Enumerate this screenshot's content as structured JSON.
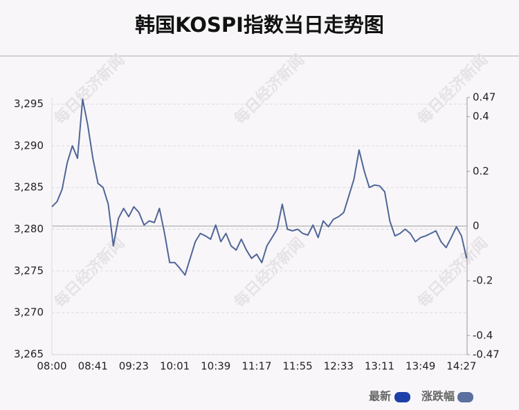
{
  "chart_data": {
    "type": "line",
    "title": "韩国KOSPI指数当日走势图",
    "watermark": "每日经济新闻",
    "categories": [
      "08:00",
      null,
      null,
      null,
      null,
      null,
      null,
      null,
      "08:41",
      null,
      null,
      null,
      null,
      null,
      null,
      null,
      "09:23",
      null,
      null,
      null,
      null,
      null,
      null,
      null,
      "10:01",
      null,
      null,
      null,
      null,
      null,
      null,
      null,
      "10:39",
      null,
      null,
      null,
      null,
      null,
      null,
      null,
      "11:17",
      null,
      null,
      null,
      null,
      null,
      null,
      null,
      "11:55",
      null,
      null,
      null,
      null,
      null,
      null,
      null,
      "12:33",
      null,
      null,
      null,
      null,
      null,
      null,
      null,
      "13:11",
      null,
      null,
      null,
      null,
      null,
      null,
      null,
      "13:49",
      null,
      null,
      null,
      null,
      null,
      null,
      null,
      "14:27",
      null
    ],
    "series": [
      {
        "color": "#4f6597",
        "values": [
          3282.7,
          3283.3,
          3284.8,
          3288,
          3290,
          3288.5,
          3295.6,
          3292.5,
          3288.5,
          3285.5,
          3285,
          3283,
          3278,
          3281.3,
          3282.5,
          3281.5,
          3282.7,
          3282,
          3280.5,
          3281,
          3280.8,
          3282.5,
          3279.5,
          3276,
          3276,
          3275.3,
          3274.5,
          3276.5,
          3278.5,
          3279.5,
          3279.2,
          3278.8,
          3280.5,
          3278.5,
          3279.5,
          3278,
          3277.5,
          3278.8,
          3277.5,
          3276.5,
          3277,
          3276,
          3278,
          3279,
          3280,
          3283,
          3280,
          3279.8,
          3280,
          3279.5,
          3279.3,
          3280.5,
          3279,
          3281,
          3280.3,
          3281.2,
          3281.5,
          3282,
          3284,
          3286,
          3289.5,
          3287,
          3285,
          3285.3,
          3285.2,
          3284.5,
          3281,
          3279.2,
          3279.5,
          3280,
          3279.5,
          3278.5,
          3279,
          3279.2,
          3279.5,
          3279.8,
          3278.5,
          3277.8,
          3279,
          3280.3,
          3279.2,
          3276.5
        ]
      }
    ],
    "legend": [
      {
        "name": "最新",
        "color": "#1d3fa8"
      },
      {
        "name": "涨跌幅",
        "color": "#5b709f"
      }
    ],
    "ylim": [
      3264.95,
      3295.8
    ],
    "yticks": [
      {
        "value": 3265,
        "label": "3,265"
      },
      {
        "value": 3270,
        "label": "3,270"
      },
      {
        "value": 3275,
        "label": "3,275"
      },
      {
        "value": 3280,
        "label": "3,280"
      },
      {
        "value": 3285,
        "label": "3,285"
      },
      {
        "value": 3290,
        "label": "3,290"
      },
      {
        "value": 3295,
        "label": "3,295"
      }
    ],
    "y2lim": [
      -0.47,
      0.47
    ],
    "y2ticks": [
      -0.47,
      -0.4,
      -0.2,
      0,
      0.2,
      0.4,
      0.47
    ],
    "grid": true
  }
}
